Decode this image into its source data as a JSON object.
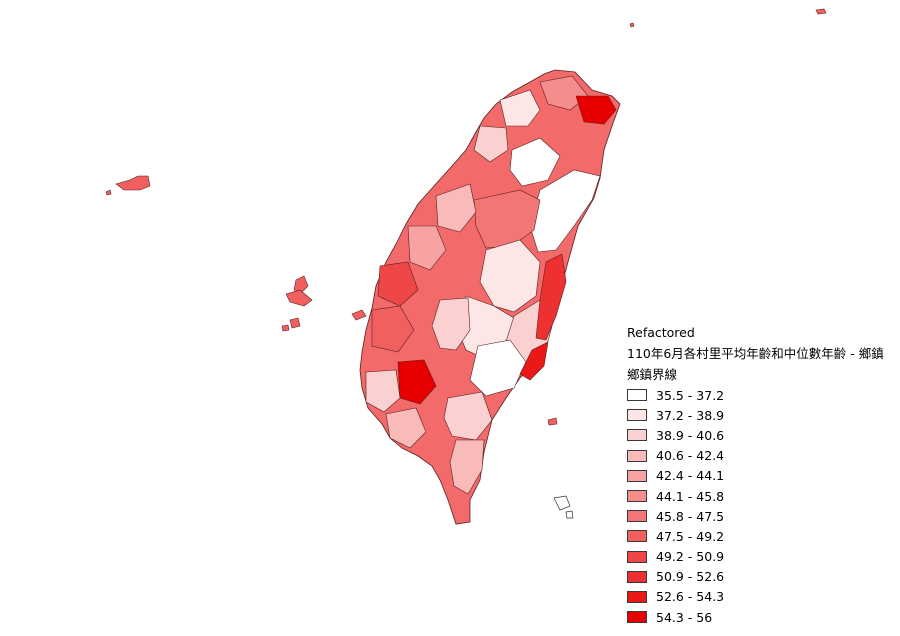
{
  "legend": {
    "group_title": "Refactored",
    "layer_title": "110年6月各村里平均年齡和中位數年齡 - 鄉鎮",
    "sublayer_title": "鄉鎮界線",
    "classes": [
      {
        "label": "35.5 - 37.2",
        "color": "#ffffff"
      },
      {
        "label": "37.2 - 38.9",
        "color": "#fde6e6"
      },
      {
        "label": "38.9 - 40.6",
        "color": "#fbd0d0"
      },
      {
        "label": "40.6 - 42.4",
        "color": "#f9baba"
      },
      {
        "label": "42.4 - 44.1",
        "color": "#f7a3a3"
      },
      {
        "label": "44.1 - 45.8",
        "color": "#f58d8d"
      },
      {
        "label": "45.8 - 47.5",
        "color": "#f37676"
      },
      {
        "label": "47.5 - 49.2",
        "color": "#f15f5f"
      },
      {
        "label": "49.2 - 50.9",
        "color": "#ef4747"
      },
      {
        "label": "50.9 - 52.6",
        "color": "#ed3030"
      },
      {
        "label": "52.6 - 54.3",
        "color": "#eb1818"
      },
      {
        "label": "54.3 - 56",
        "color": "#e80000"
      }
    ]
  }
}
